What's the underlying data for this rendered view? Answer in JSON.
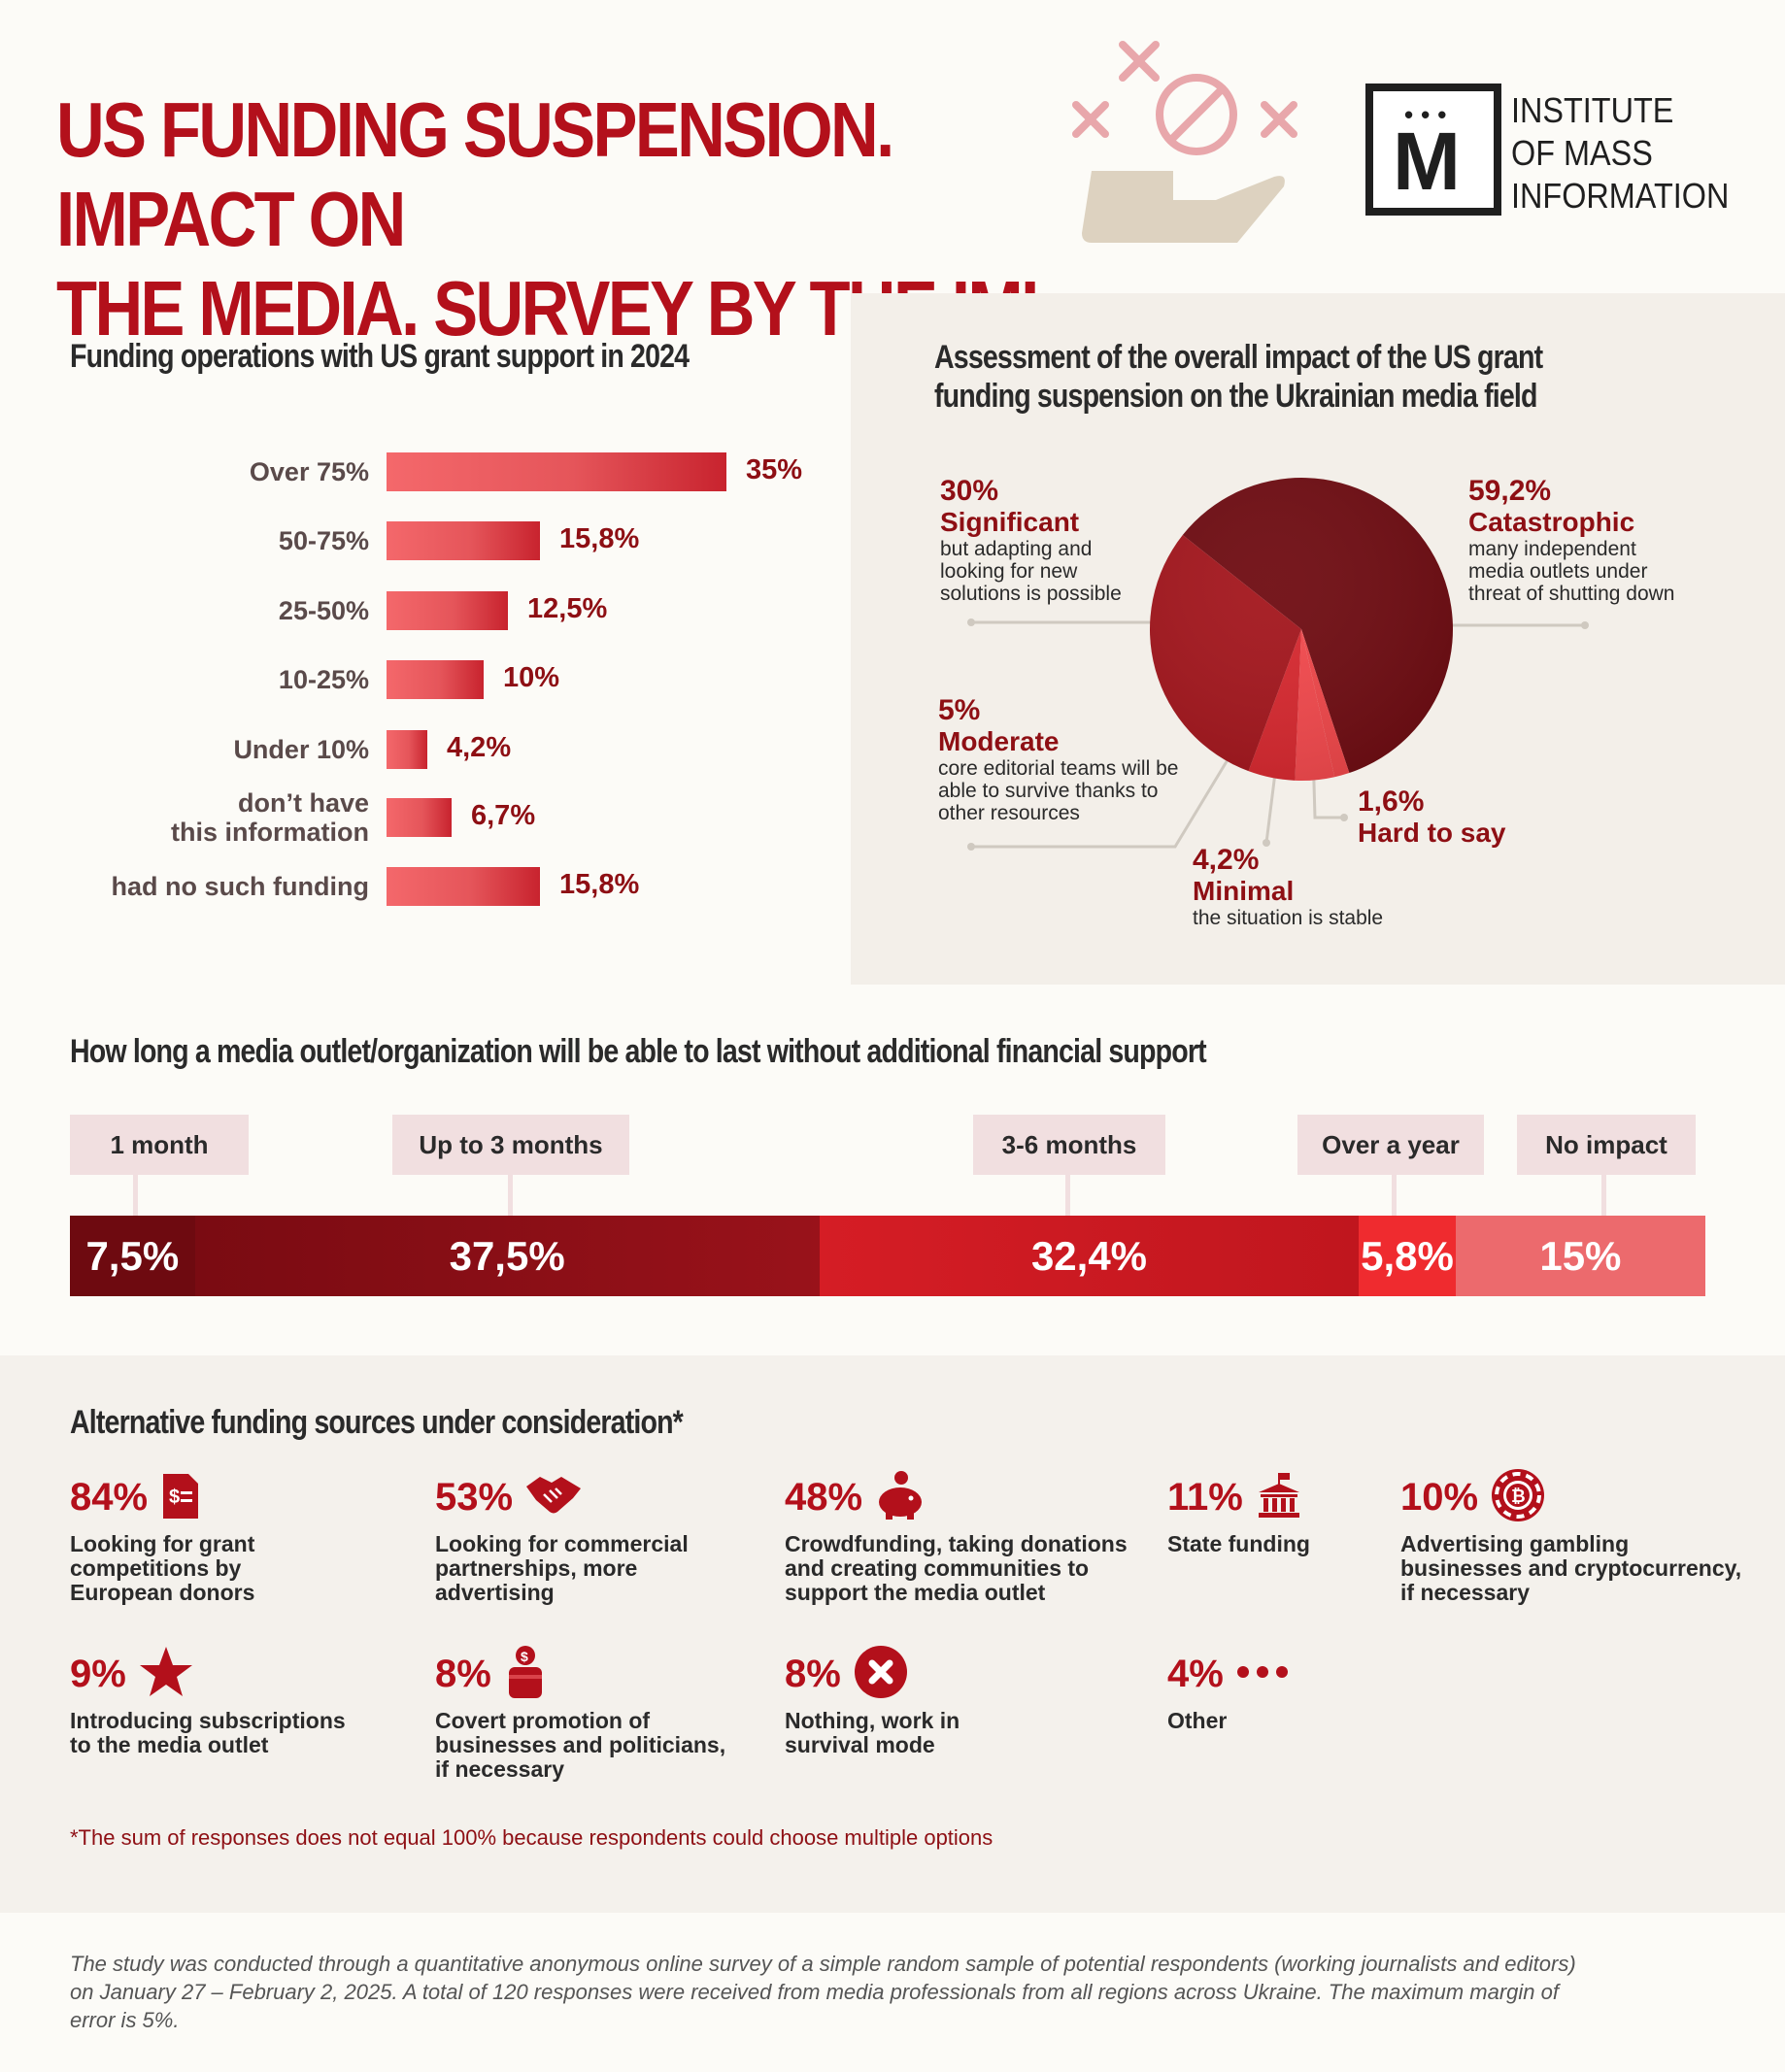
{
  "header": {
    "title_line1": "US FUNDING SUSPENSION. IMPACT ON",
    "title_line2": "THE MEDIA. SURVEY BY THE IMI",
    "logo_letter": "M",
    "logo_text_line1": "INSTITUTE",
    "logo_text_line2": "OF MASS",
    "logo_text_line3": "INFORMATION"
  },
  "colors": {
    "accent": "#b3101b",
    "dark_red": "#8e0f14",
    "panel": "#f3efe9",
    "tag": "#f1dfe0"
  },
  "chart_data": [
    {
      "type": "bar",
      "title": "Funding operations with US grant support in 2024",
      "categories": [
        "Over 75%",
        "50-75%",
        "25-50%",
        "10-25%",
        "Under 10%",
        "don’t have this information",
        "had no such funding"
      ],
      "category_lines": [
        [
          "Over 75%"
        ],
        [
          "50-75%"
        ],
        [
          "25-50%"
        ],
        [
          "10-25%"
        ],
        [
          "Under 10%"
        ],
        [
          "don’t have",
          "this information"
        ],
        [
          "had no such funding"
        ]
      ],
      "values": [
        35,
        15.8,
        12.5,
        10,
        4.2,
        6.7,
        15.8
      ],
      "value_labels": [
        "35%",
        "15,8%",
        "12,5%",
        "10%",
        "4,2%",
        "6,7%",
        "15,8%"
      ],
      "orientation": "horizontal",
      "xlim": [
        0,
        35
      ]
    },
    {
      "type": "pie",
      "title_line1": "Assessment of the overall impact of the US grant",
      "title_line2": "funding suspension on the Ukrainian media field",
      "slices": [
        {
          "name": "Catastrophic",
          "value": 59.2,
          "label": "59,2%",
          "desc": [
            "many independent",
            "media outlets under",
            "threat of shutting down"
          ],
          "color": "#6e0a10"
        },
        {
          "name": "Hard to say",
          "value": 1.6,
          "label": "1,6%",
          "desc": [],
          "color": "#f04548"
        },
        {
          "name": "Minimal",
          "value": 4.2,
          "label": "4,2%",
          "desc": [
            "the situation is stable"
          ],
          "color": "#f3474b"
        },
        {
          "name": "Moderate",
          "value": 5,
          "label": "5%",
          "desc": [
            "core editorial teams will be",
            "able to survive thanks to",
            "other resources"
          ],
          "color": "#d7262d"
        },
        {
          "name": "Significant",
          "value": 30,
          "label": "30%",
          "desc": [
            "but adapting and",
            "looking for new",
            "solutions is possible"
          ],
          "color": "#a3141b"
        }
      ]
    },
    {
      "type": "bar",
      "stacked": true,
      "title": "How long a media outlet/organization will be able to last without additional financial support",
      "categories": [
        "1 month",
        "Up to 3 months",
        "3-6 months",
        "Over a year",
        "No impact"
      ],
      "values": [
        7.5,
        37.5,
        32.4,
        5.8,
        15
      ],
      "value_labels": [
        "7,5%",
        "37,5%",
        "32,4%",
        "5,8%",
        "15%"
      ],
      "colors": [
        "#6e0a10",
        "#8c0d14",
        "#d51d25",
        "#ef2b2f",
        "#ec6a6d"
      ]
    }
  ],
  "alt_funding": {
    "title": "Alternative funding sources under consideration*",
    "items": [
      {
        "pct": "84%",
        "icon": "grant-document-icon",
        "lines": [
          "Looking for grant",
          "competitions by",
          "European donors"
        ]
      },
      {
        "pct": "53%",
        "icon": "handshake-icon",
        "lines": [
          "Looking for commercial",
          "partnerships, more",
          "advertising"
        ]
      },
      {
        "pct": "48%",
        "icon": "piggy-bank-icon",
        "lines": [
          "Crowdfunding, taking donations",
          "and creating communities to",
          "support the media outlet"
        ]
      },
      {
        "pct": "11%",
        "icon": "government-building-icon",
        "lines": [
          "State funding"
        ]
      },
      {
        "pct": "10%",
        "icon": "casino-chip-icon",
        "lines": [
          "Advertising gambling",
          "businesses and cryptocurrency,",
          "if necessary"
        ]
      },
      {
        "pct": "9%",
        "icon": "star-icon",
        "lines": [
          "Introducing subscriptions",
          "to the media outlet"
        ]
      },
      {
        "pct": "8%",
        "icon": "money-bag-icon",
        "lines": [
          "Covert promotion of",
          "businesses and politicians,",
          "if necessary"
        ]
      },
      {
        "pct": "8%",
        "icon": "cross-circle-icon",
        "lines": [
          "Nothing, work in",
          "survival mode"
        ]
      },
      {
        "pct": "4%",
        "icon": "more-dots-icon",
        "lines": [
          "Other"
        ]
      }
    ],
    "footnote": "*The sum of responses does not equal 100% because respondents could choose multiple options"
  },
  "study_note": {
    "line1": "The study was conducted through a quantitative anonymous online survey of a simple random sample of potential respondents (working journalists and editors)",
    "line2": "on January 27 – February 2, 2025. A total of 120 responses were received from media professionals from all regions across Ukraine. The maximum margin of",
    "line3": "error is 5%."
  }
}
